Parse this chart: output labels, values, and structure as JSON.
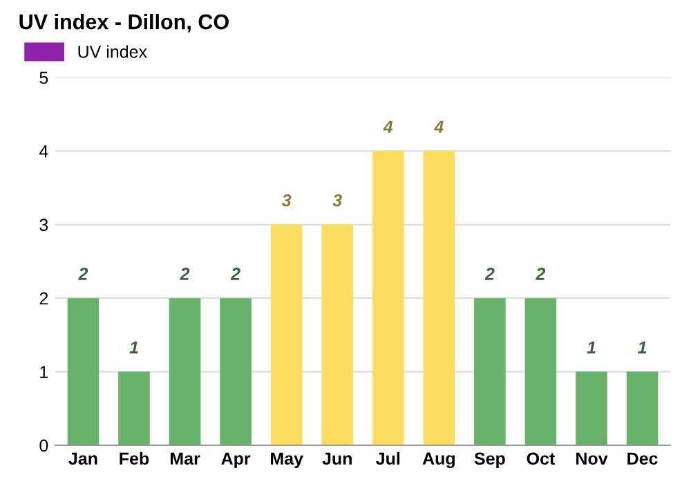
{
  "chart_data": {
    "type": "bar",
    "title": "UV index - Dillon, CO",
    "categories": [
      "Jan",
      "Feb",
      "Mar",
      "Apr",
      "May",
      "Jun",
      "Jul",
      "Aug",
      "Sep",
      "Oct",
      "Nov",
      "Dec"
    ],
    "series": [
      {
        "name": "UV index",
        "color": "#8e24aa",
        "values": [
          2,
          1,
          2,
          2,
          3,
          3,
          4,
          4,
          2,
          2,
          1,
          1
        ],
        "colors": [
          "#68b26c",
          "#68b26c",
          "#68b26c",
          "#68b26c",
          "#fcdd5d",
          "#fcdd5d",
          "#fcdd5d",
          "#fcdd5d",
          "#68b26c",
          "#68b26c",
          "#68b26c",
          "#68b26c"
        ]
      }
    ],
    "ylim": [
      0,
      5
    ],
    "yticks": [
      0,
      1,
      2,
      3,
      4,
      5
    ],
    "grid": "y",
    "legend": "top left",
    "data_labels": true
  }
}
